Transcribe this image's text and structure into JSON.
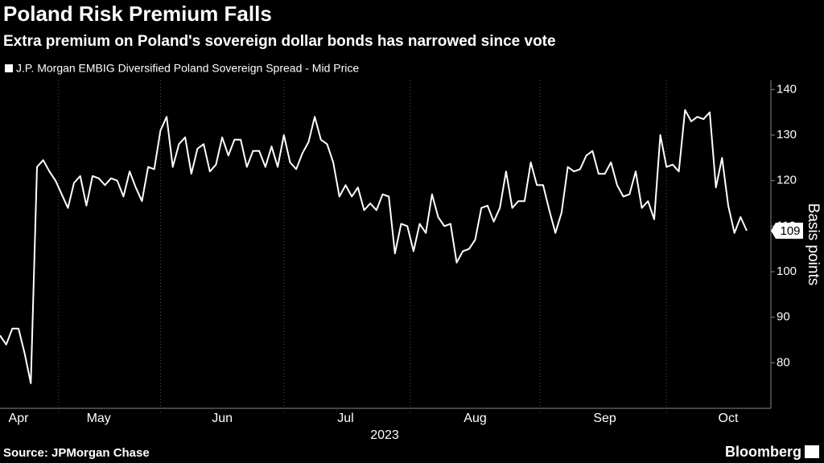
{
  "chart_data": {
    "type": "line",
    "title": "Poland Risk Premium Falls",
    "subtitle": "Extra premium on Poland's sovereign dollar bonds has narrowed since vote",
    "ylabel": "Basis points",
    "xlabel": "2023",
    "source": "Source: JPMorgan Chase",
    "brand": "Bloomberg",
    "categories": [
      null,
      null,
      null,
      "Apr",
      null,
      null,
      null,
      null,
      null,
      null,
      null,
      null,
      null,
      null,
      null,
      null,
      "May",
      null,
      null,
      null,
      null,
      null,
      null,
      null,
      null,
      null,
      null,
      null,
      null,
      null,
      null,
      null,
      null,
      null,
      null,
      null,
      "Jun",
      null,
      null,
      null,
      null,
      null,
      null,
      null,
      null,
      null,
      null,
      null,
      null,
      null,
      null,
      null,
      null,
      null,
      null,
      null,
      "Jul",
      null,
      null,
      null,
      null,
      null,
      null,
      null,
      null,
      null,
      null,
      null,
      null,
      null,
      null,
      null,
      null,
      null,
      null,
      null,
      null,
      "Aug",
      null,
      null,
      null,
      null,
      null,
      null,
      null,
      null,
      null,
      null,
      null,
      null,
      null,
      null,
      null,
      null,
      null,
      null,
      null,
      null,
      "Sep",
      null,
      null,
      null,
      null,
      null,
      null,
      null,
      null,
      null,
      null,
      null,
      null,
      null,
      null,
      null,
      null,
      null,
      null,
      null,
      "Oct",
      null,
      null,
      null
    ],
    "series": [
      {
        "name": "J.P. Morgan EMBIG Diversified Poland Sovereign Spread - Mid Price",
        "color": "#ffffff",
        "values": [
          86,
          84,
          87.5,
          87.5,
          82,
          75.5,
          123,
          124.5,
          122,
          120,
          117,
          114,
          119.5,
          121,
          114.5,
          121,
          120.5,
          119,
          120.5,
          120,
          116.5,
          122,
          118.5,
          115.5,
          123,
          122.5,
          131,
          134,
          123,
          128,
          129.5,
          121.5,
          127,
          128,
          122,
          123.5,
          129.5,
          125.5,
          129,
          129,
          123,
          126.5,
          126.5,
          123,
          127.5,
          123,
          130,
          124,
          122.5,
          126,
          128.5,
          134,
          129,
          128,
          124,
          116.5,
          119,
          116.5,
          118.5,
          113.5,
          115,
          113.5,
          117,
          116.5,
          104,
          110.5,
          110,
          104.5,
          110.5,
          108.5,
          117,
          112,
          110,
          110.5,
          102,
          104.5,
          105,
          107,
          114,
          114.5,
          111,
          114,
          122,
          114,
          115.5,
          115.5,
          124,
          119,
          119,
          113.5,
          108.5,
          113,
          123,
          122,
          122.5,
          125.5,
          126.5,
          121.5,
          121.5,
          124,
          119,
          116.5,
          117,
          122,
          114,
          115.5,
          111.5,
          130,
          123,
          123.5,
          122,
          135.5,
          133,
          134,
          133.5,
          135,
          118.5,
          125,
          114.5,
          108.5,
          112,
          109
        ]
      }
    ],
    "ylim": [
      70,
      142
    ],
    "yticks": [
      80,
      90,
      100,
      110,
      120,
      130,
      140
    ]
  }
}
